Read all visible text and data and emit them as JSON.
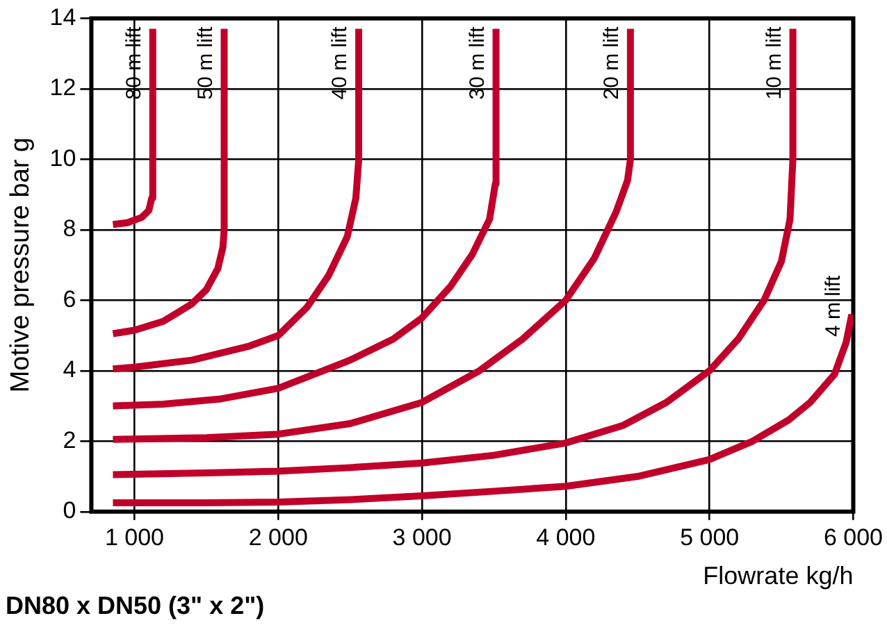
{
  "chart_data": {
    "type": "line",
    "title": "DN80 x DN50 (3\" x 2\")",
    "xlabel": "Flowrate kg/h",
    "ylabel": "Motive pressure bar g",
    "xlim": [
      700,
      6000
    ],
    "ylim": [
      0,
      14
    ],
    "xticks": [
      {
        "value": 1000,
        "label": "1 000"
      },
      {
        "value": 2000,
        "label": "2 000"
      },
      {
        "value": 3000,
        "label": "3 000"
      },
      {
        "value": 4000,
        "label": "4 000"
      },
      {
        "value": 5000,
        "label": "5 000"
      },
      {
        "value": 6000,
        "label": "6 000"
      }
    ],
    "yticks": [
      0,
      2,
      4,
      6,
      8,
      10,
      12,
      14
    ],
    "grid": true,
    "legend": false,
    "marker": "none",
    "line_style": "solid",
    "series": [
      {
        "name": "80 m lift",
        "color": "#c0002a",
        "x": [
          850,
          950,
          1050,
          1100,
          1120,
          1127
        ],
        "values": [
          8.15,
          8.2,
          8.35,
          8.55,
          8.9,
          13.7
        ]
      },
      {
        "name": "50 m lift",
        "color": "#c0002a",
        "x": [
          850,
          1000,
          1200,
          1400,
          1500,
          1580,
          1615,
          1624,
          1624
        ],
        "values": [
          5.05,
          5.15,
          5.4,
          5.9,
          6.3,
          6.9,
          7.5,
          8,
          13.7
        ]
      },
      {
        "name": "40 m lift",
        "color": "#c0002a",
        "x": [
          850,
          1000,
          1400,
          1800,
          2000,
          2200,
          2350,
          2480,
          2540,
          2560,
          2560
        ],
        "values": [
          4.05,
          4.1,
          4.3,
          4.7,
          5.0,
          5.8,
          6.7,
          7.8,
          8.9,
          10,
          13.7
        ]
      },
      {
        "name": "30 m lift",
        "color": "#c0002a",
        "x": [
          850,
          1200,
          1600,
          2000,
          2500,
          2800,
          3000,
          3200,
          3350,
          3470,
          3510,
          3515
        ],
        "values": [
          3.0,
          3.05,
          3.2,
          3.5,
          4.3,
          4.9,
          5.5,
          6.4,
          7.3,
          8.3,
          9.3,
          13.7
        ]
      },
      {
        "name": "20 m lift",
        "color": "#c0002a",
        "x": [
          850,
          1500,
          2000,
          2500,
          3000,
          3400,
          3700,
          4000,
          4200,
          4350,
          4430,
          4450,
          4450
        ],
        "values": [
          2.05,
          2.1,
          2.2,
          2.5,
          3.1,
          4.0,
          4.9,
          6.0,
          7.2,
          8.5,
          9.4,
          10,
          13.7
        ]
      },
      {
        "name": "10 m lift",
        "color": "#c0002a",
        "x": [
          850,
          1500,
          2000,
          2500,
          3000,
          3500,
          4000,
          4400,
          4700,
          5000,
          5200,
          5380,
          5500,
          5560,
          5580,
          5580
        ],
        "values": [
          1.05,
          1.1,
          1.15,
          1.25,
          1.38,
          1.6,
          1.95,
          2.45,
          3.1,
          4.0,
          4.9,
          6.0,
          7.1,
          8.3,
          10,
          13.7
        ]
      },
      {
        "name": "4 m lift",
        "color": "#c0002a",
        "x": [
          850,
          1500,
          2000,
          2500,
          3000,
          3500,
          4000,
          4500,
          5000,
          5300,
          5550,
          5700,
          5870,
          5950,
          5990
        ],
        "values": [
          0.25,
          0.25,
          0.27,
          0.34,
          0.45,
          0.58,
          0.72,
          1.0,
          1.48,
          2.0,
          2.6,
          3.1,
          3.9,
          4.8,
          5.6
        ]
      }
    ]
  }
}
